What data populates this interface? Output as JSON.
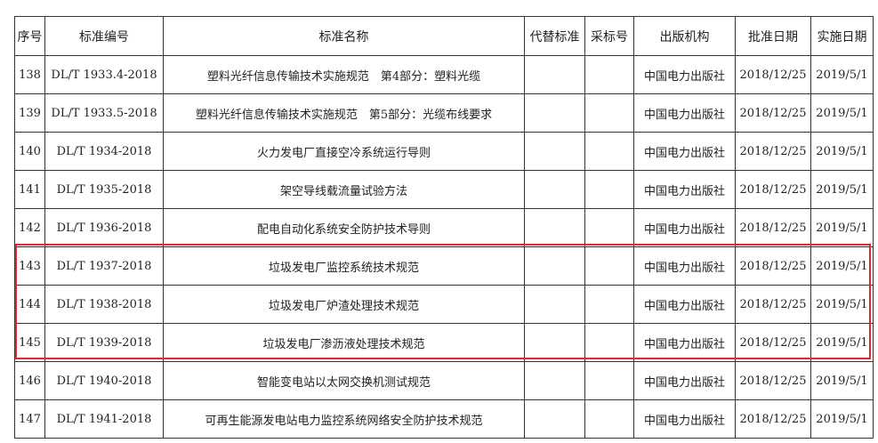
{
  "table": {
    "columns": [
      "序号",
      "标准编号",
      "标准名称",
      "代替标准",
      "采标号",
      "出版机构",
      "批准日期",
      "实施日期"
    ],
    "rows": [
      {
        "no": "138",
        "code": "DL/T 1933.4-2018",
        "name": "塑料光纤信息传输技术实施规范　第4部分：塑料光缆",
        "publisher": "中国电力出版社",
        "approved": "2018/12/25",
        "effective": "2019/5/1"
      },
      {
        "no": "139",
        "code": "DL/T 1933.5-2018",
        "name": "塑料光纤信息传输技术实施规范　第5部分：光缆布线要求",
        "publisher": "中国电力出版社",
        "approved": "2018/12/25",
        "effective": "2019/5/1"
      },
      {
        "no": "140",
        "code": "DL/T 1934-2018",
        "name": "火力发电厂直接空冷系统运行导则",
        "publisher": "中国电力出版社",
        "approved": "2018/12/25",
        "effective": "2019/5/1"
      },
      {
        "no": "141",
        "code": "DL/T 1935-2018",
        "name": "架空导线载流量试验方法",
        "publisher": "中国电力出版社",
        "approved": "2018/12/25",
        "effective": "2019/5/1"
      },
      {
        "no": "142",
        "code": "DL/T 1936-2018",
        "name": "配电自动化系统安全防护技术导则",
        "publisher": "中国电力出版社",
        "approved": "2018/12/25",
        "effective": "2019/5/1"
      },
      {
        "no": "143",
        "code": "DL/T 1937-2018",
        "name": "垃圾发电厂监控系统技术规范",
        "publisher": "中国电力出版社",
        "approved": "2018/12/25",
        "effective": "2019/5/1"
      },
      {
        "no": "144",
        "code": "DL/T 1938-2018",
        "name": "垃圾发电厂炉渣处理技术规范",
        "publisher": "中国电力出版社",
        "approved": "2018/12/25",
        "effective": "2019/5/1"
      },
      {
        "no": "145",
        "code": "DL/T 1939-2018",
        "name": "垃圾发电厂渗沥液处理技术规范",
        "publisher": "中国电力出版社",
        "approved": "2018/12/25",
        "effective": "2019/5/1"
      },
      {
        "no": "146",
        "code": "DL/T 1940-2018",
        "name": "智能变电站以太网交换机测试规范",
        "publisher": "中国电力出版社",
        "approved": "2018/12/25",
        "effective": "2019/5/1"
      },
      {
        "no": "147",
        "code": "DL/T 1941-2018",
        "name": "可再生能源发电站电力监控系统网络安全防护技术规范",
        "publisher": "中国电力出版社",
        "approved": "2018/12/25",
        "effective": "2019/5/1"
      }
    ]
  }
}
